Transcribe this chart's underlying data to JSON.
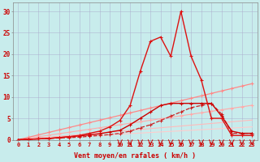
{
  "x": [
    0,
    1,
    2,
    3,
    4,
    5,
    6,
    7,
    8,
    9,
    10,
    11,
    12,
    13,
    14,
    15,
    16,
    17,
    18,
    19,
    20,
    21,
    22,
    23
  ],
  "line_lightest": [
    0,
    0.13,
    0.26,
    0.39,
    0.52,
    0.65,
    0.78,
    0.91,
    1.04,
    1.17,
    1.3,
    1.43,
    1.56,
    1.69,
    1.82,
    1.95,
    2.08,
    2.21,
    2.34,
    2.47,
    2.6,
    2.73,
    2.86,
    3.0
  ],
  "line_light1": [
    0,
    0.2,
    0.4,
    0.6,
    0.8,
    1.0,
    1.2,
    1.4,
    1.6,
    1.8,
    2.0,
    2.2,
    2.4,
    2.6,
    2.8,
    3.0,
    3.2,
    3.4,
    3.6,
    3.8,
    4.0,
    4.2,
    4.4,
    4.6
  ],
  "line_light2": [
    0,
    0.35,
    0.7,
    1.05,
    1.4,
    1.75,
    2.1,
    2.45,
    2.8,
    3.15,
    3.5,
    3.85,
    4.2,
    4.55,
    4.9,
    5.25,
    5.6,
    5.95,
    6.3,
    6.65,
    7.0,
    7.35,
    7.7,
    8.05
  ],
  "line_med_diag": [
    0,
    0.57,
    1.14,
    1.71,
    2.28,
    2.85,
    3.42,
    3.99,
    4.56,
    5.13,
    5.7,
    6.27,
    6.84,
    7.41,
    7.98,
    8.55,
    9.12,
    9.69,
    10.26,
    10.83,
    11.4,
    11.97,
    12.54,
    13.11
  ],
  "line_dashed": [
    0,
    0.1,
    0.2,
    0.3,
    0.4,
    0.5,
    0.6,
    0.8,
    1.0,
    1.2,
    1.5,
    2.0,
    2.8,
    3.5,
    4.5,
    5.5,
    6.5,
    7.5,
    8.0,
    8.5,
    6.0,
    1.5,
    1.5,
    1.5
  ],
  "line_dark_markers": [
    0,
    0.1,
    0.2,
    0.3,
    0.5,
    0.7,
    0.9,
    1.1,
    1.4,
    1.8,
    2.2,
    3.5,
    5.0,
    6.5,
    8.0,
    8.5,
    8.5,
    8.5,
    8.5,
    8.5,
    5.5,
    2.0,
    1.5,
    1.5
  ],
  "line_bright": [
    0,
    0.1,
    0.2,
    0.3,
    0.5,
    0.7,
    1.0,
    1.5,
    2.0,
    3.0,
    4.5,
    8.0,
    16.0,
    23.0,
    24.0,
    19.5,
    30.0,
    19.5,
    14.0,
    5.0,
    5.0,
    1.0,
    1.0,
    1.0
  ],
  "arrows_x": [
    10,
    11,
    12,
    13,
    14,
    15,
    16,
    17,
    18,
    19,
    20,
    21,
    22,
    23
  ],
  "bg_color": "#c8ecec",
  "xlabel": "Vent moyen/en rafales ( km/h )",
  "ylim": [
    0,
    32
  ],
  "xlim": [
    -0.5,
    23.5
  ],
  "yticks": [
    0,
    5,
    10,
    15,
    20,
    25,
    30
  ],
  "xticks": [
    0,
    1,
    2,
    3,
    4,
    5,
    6,
    7,
    8,
    9,
    10,
    11,
    12,
    13,
    14,
    15,
    16,
    17,
    18,
    19,
    20,
    21,
    22,
    23
  ]
}
